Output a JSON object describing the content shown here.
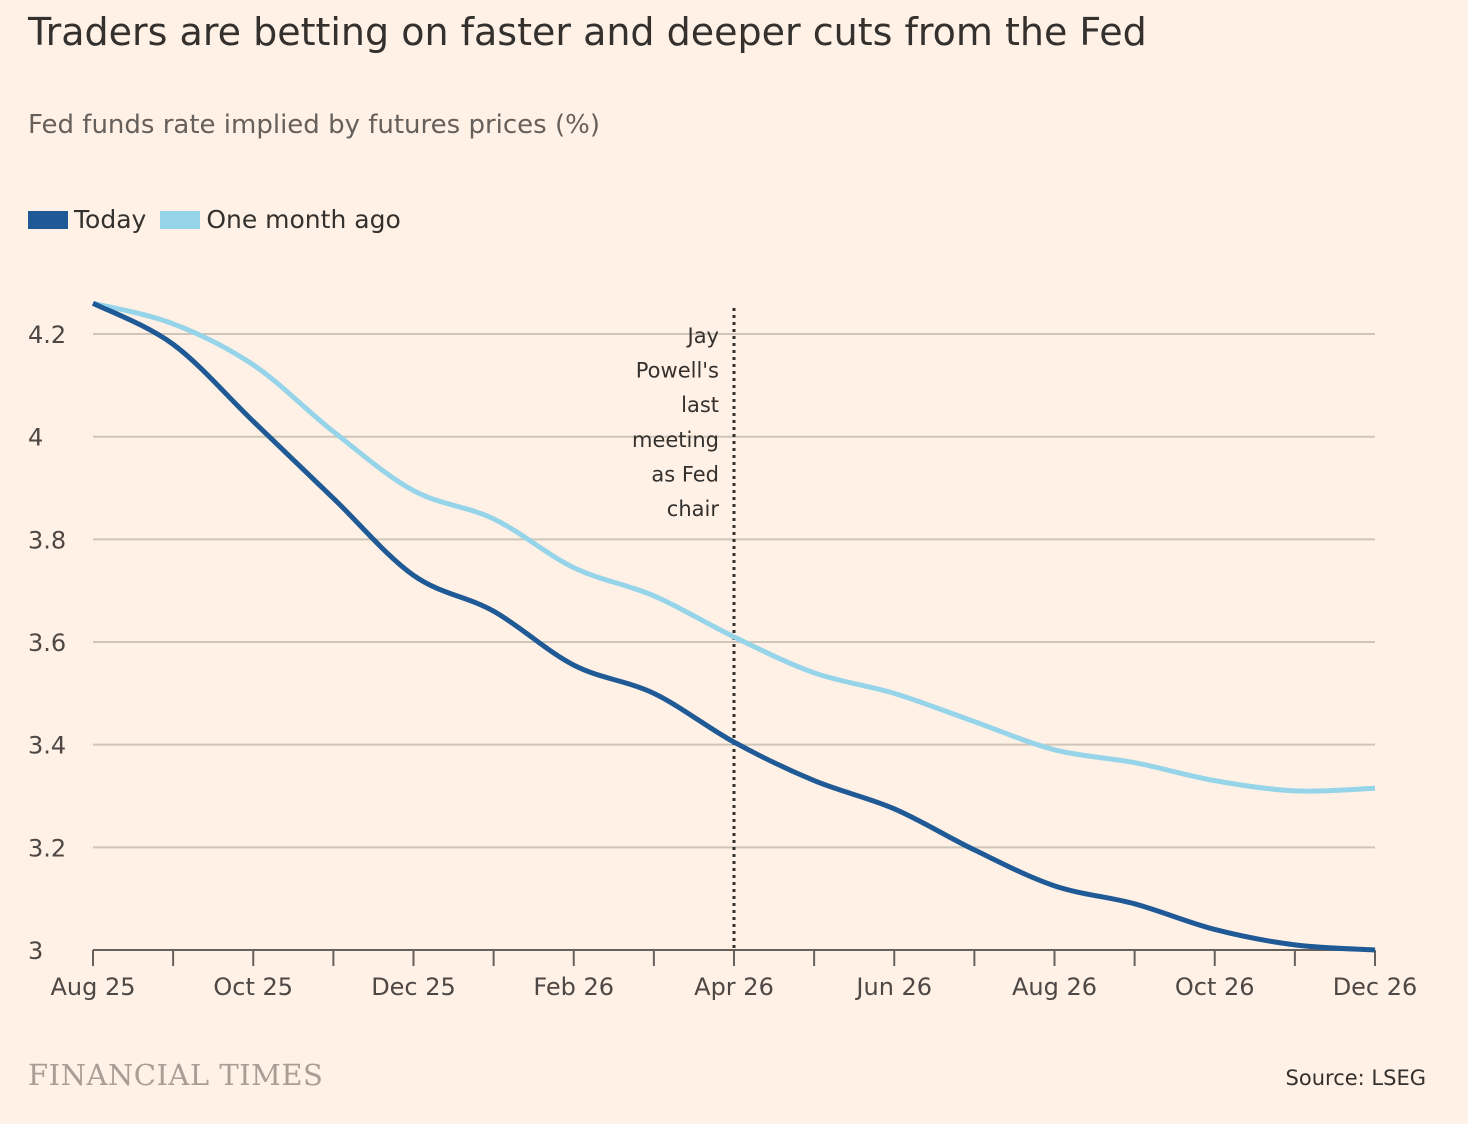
{
  "chart_data": {
    "type": "line",
    "title": "Traders are betting on faster and deeper cuts from the Fed",
    "subtitle": "Fed funds rate implied by futures prices (%)",
    "xlabel": "",
    "ylabel": "",
    "x": [
      "Aug 25",
      "Sep 25",
      "Oct 25",
      "Nov 25",
      "Dec 25",
      "Jan 26",
      "Feb 26",
      "Mar 26",
      "Apr 26",
      "May 26",
      "Jun 26",
      "Jul 26",
      "Aug 26",
      "Sep 26",
      "Oct 26",
      "Nov 26",
      "Dec 26"
    ],
    "x_tick_labels": [
      "Aug 25",
      "Oct 25",
      "Dec 25",
      "Feb 26",
      "Apr 26",
      "Jun 26",
      "Aug 26",
      "Oct 26",
      "Dec 26"
    ],
    "y_ticks": [
      "3",
      "3.2",
      "3.4",
      "3.6",
      "3.8",
      "4",
      "4.2"
    ],
    "ylim": [
      3,
      4.26
    ],
    "grid": true,
    "legend_placement": "top-left",
    "series": [
      {
        "name": "Today",
        "color": "#1F5A96",
        "values": [
          4.26,
          4.18,
          4.03,
          3.88,
          3.73,
          3.66,
          3.555,
          3.5,
          3.405,
          3.33,
          3.275,
          3.195,
          3.125,
          3.09,
          3.04,
          3.01,
          3.0
        ]
      },
      {
        "name": "One month ago",
        "color": "#96D4EA",
        "values": [
          4.26,
          4.22,
          4.14,
          4.01,
          3.895,
          3.84,
          3.745,
          3.69,
          3.61,
          3.54,
          3.5,
          3.445,
          3.39,
          3.365,
          3.33,
          3.31,
          3.315
        ]
      }
    ],
    "annotations": [
      {
        "x": "Apr 26",
        "lines": [
          "Jay",
          "Powell's",
          "last",
          "meeting",
          "as Fed",
          "chair"
        ]
      }
    ]
  },
  "footer": {
    "logo": "FINANCIAL TIMES",
    "source": "Source: LSEG"
  }
}
